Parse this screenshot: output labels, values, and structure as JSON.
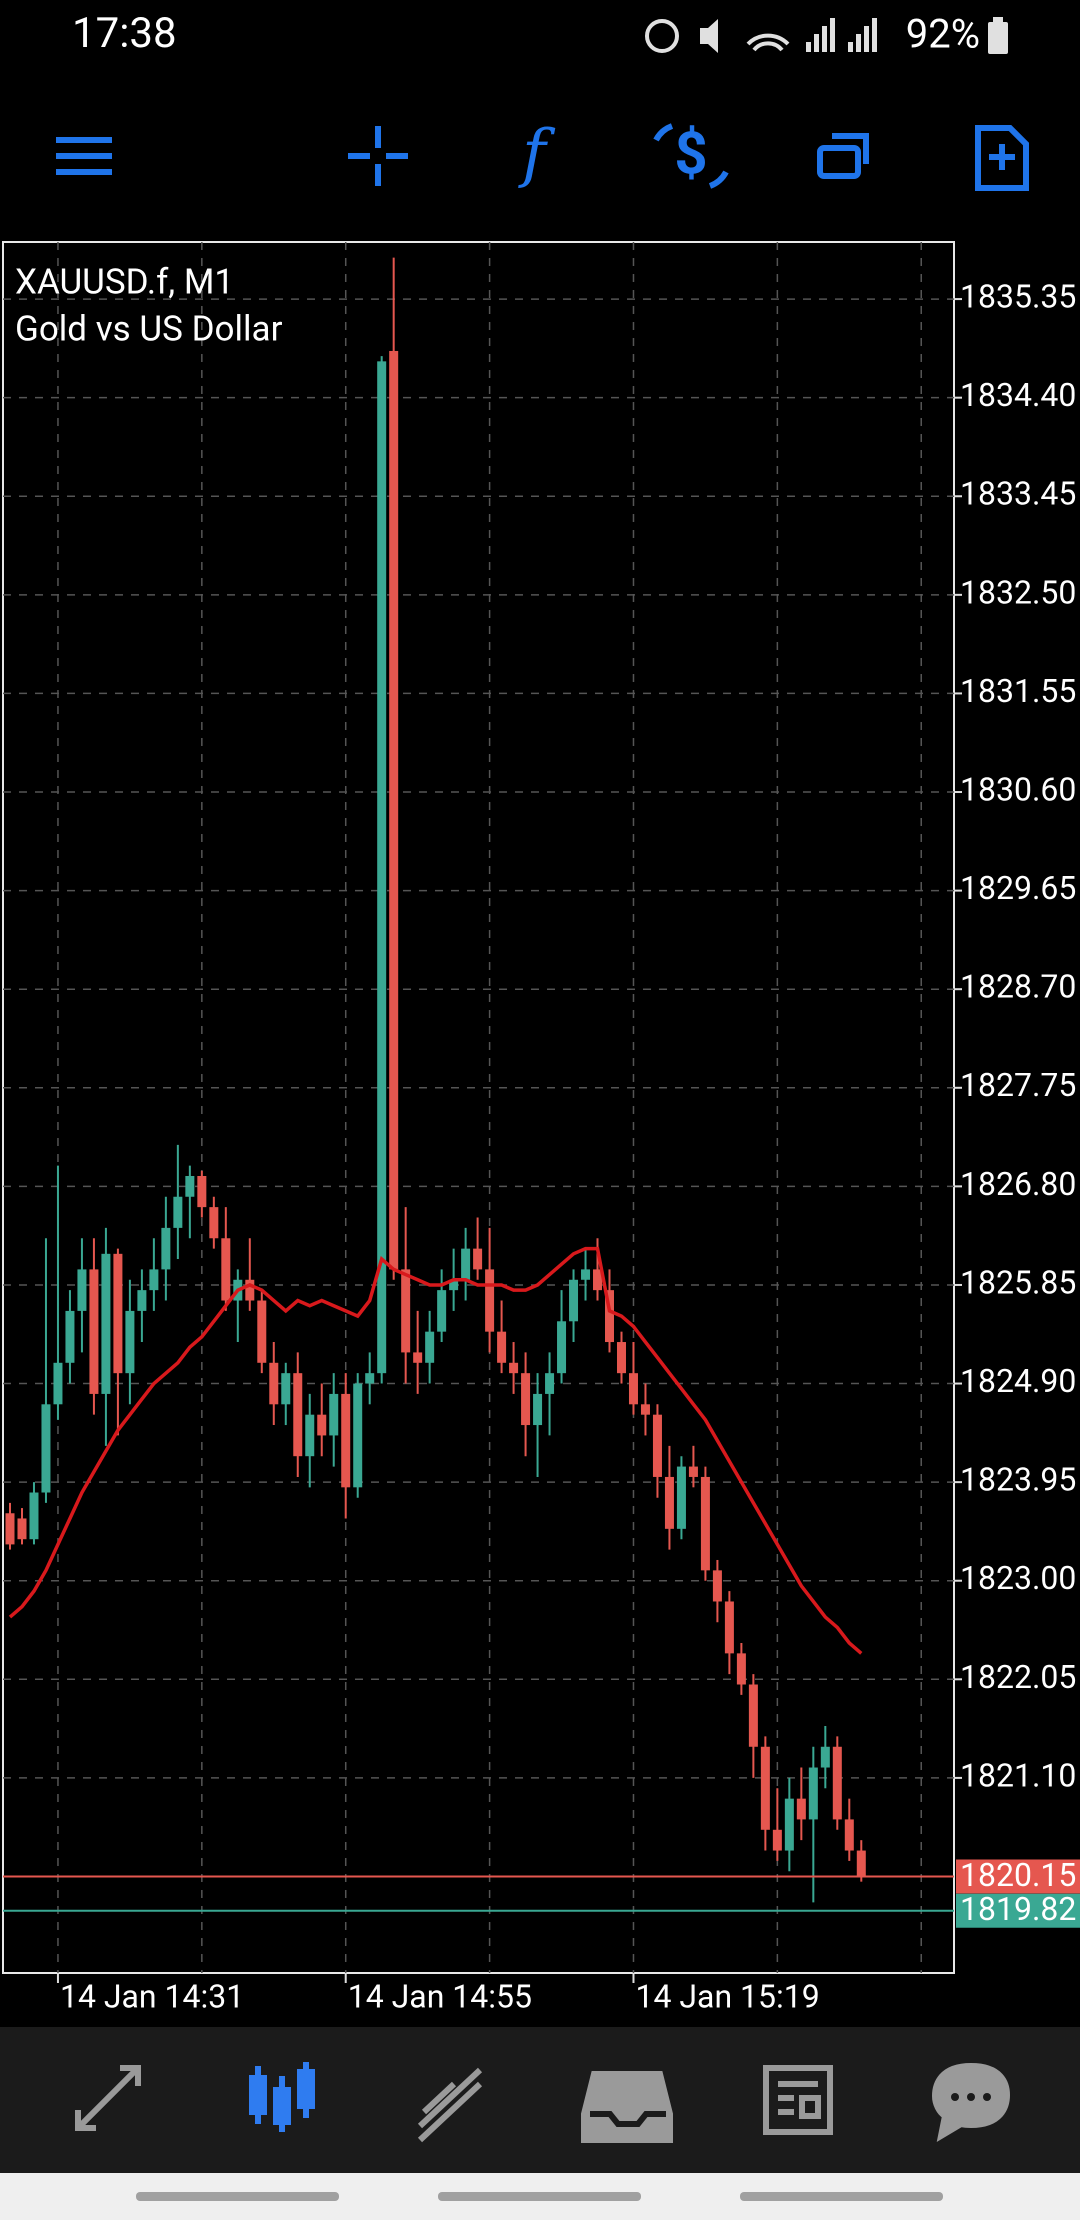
{
  "status_bar": {
    "time": "17:38",
    "battery": "92%"
  },
  "chart_data": {
    "type": "candlestick",
    "symbol": "XAUUSD.f, M1",
    "description": "Gold vs US Dollar",
    "categories": [
      null,
      null,
      null,
      null,
      "14 Jan 14:31",
      null,
      null,
      null,
      null,
      null,
      null,
      null,
      null,
      null,
      null,
      null,
      null,
      null,
      null,
      null,
      null,
      null,
      null,
      null,
      null,
      null,
      null,
      null,
      "14 Jan 14:55",
      null,
      null,
      null,
      null,
      null,
      null,
      null,
      null,
      null,
      null,
      null,
      null,
      null,
      null,
      null,
      null,
      null,
      null,
      null,
      null,
      null,
      null,
      null,
      "14 Jan 15:19",
      null,
      null,
      null,
      null,
      null,
      null,
      null,
      null,
      null,
      null,
      null,
      null,
      null,
      null,
      null,
      null,
      null,
      null,
      null
    ],
    "open": [
      1823.65,
      1823.6,
      1823.4,
      1823.85,
      1824.7,
      1825.1,
      1825.6,
      1826,
      1824.8,
      1826.15,
      1825,
      1825.6,
      1825.8,
      1826,
      1826.4,
      1826.7,
      1826.9,
      1826.6,
      1826.3,
      1825.7,
      1825.9,
      1825.7,
      1825.1,
      1824.7,
      1825,
      1824.2,
      1824.6,
      1824.4,
      1824.8,
      1823.9,
      1824.9,
      1825,
      1834.85,
      1826,
      1825.2,
      1825.1,
      1825.4,
      1825.8,
      1825.9,
      1826.2,
      1826,
      1825.4,
      1825.1,
      1825,
      1824.5,
      1824.8,
      1825,
      1825.5,
      1825.9,
      1826,
      1825.8,
      1825.3,
      1825,
      1824.7,
      1824.6,
      1824,
      1823.5,
      1824.1,
      1824,
      1823.1,
      1822.8,
      1822.3,
      1822,
      1821.4,
      1820.6,
      1820.4,
      1820.9,
      1820.7,
      1821.2,
      1821.4,
      1820.7,
      1820.4
    ],
    "high": [
      1823.75,
      1823.7,
      1823.95,
      1826.3,
      1827,
      1825.8,
      1826.3,
      1826.3,
      1826.4,
      1826.2,
      1825.9,
      1826,
      1826.3,
      1826.7,
      1827.2,
      1827,
      1826.95,
      1826.7,
      1826.6,
      1826,
      1826.3,
      1825.8,
      1825.3,
      1825.1,
      1825.2,
      1824.8,
      1824.9,
      1825,
      1825,
      1825,
      1825.2,
      1834.8,
      1835.75,
      1826.6,
      1825.6,
      1825.6,
      1826,
      1826.2,
      1826.4,
      1826.5,
      1826.4,
      1825.7,
      1825.3,
      1825.2,
      1825,
      1825.2,
      1825.8,
      1826,
      1826.2,
      1826.3,
      1826,
      1825.4,
      1825.3,
      1824.9,
      1824.7,
      1824.3,
      1824.2,
      1824.3,
      1824.1,
      1823.2,
      1822.9,
      1822.4,
      1822.1,
      1821.5,
      1821,
      1821.1,
      1821.2,
      1821.4,
      1821.6,
      1821.5,
      1820.9,
      1820.5
    ],
    "low": [
      1823.3,
      1823.35,
      1823.35,
      1823.75,
      1824.55,
      1824.9,
      1825.2,
      1824.6,
      1824.3,
      1824.4,
      1824.7,
      1825.3,
      1825.6,
      1825.7,
      1826.1,
      1826.3,
      1826.5,
      1826.2,
      1825.6,
      1825.3,
      1825.6,
      1825,
      1824.5,
      1824.5,
      1824,
      1823.9,
      1824.2,
      1824.1,
      1823.6,
      1823.8,
      1824.7,
      1824.9,
      1825.9,
      1824.9,
      1824.8,
      1824.9,
      1825.3,
      1825.6,
      1825.7,
      1825.9,
      1825.2,
      1825,
      1824.8,
      1824.2,
      1824,
      1824.4,
      1824.9,
      1825.3,
      1825.7,
      1825.7,
      1825.2,
      1824.9,
      1824.6,
      1824.4,
      1823.8,
      1823.3,
      1823.4,
      1823.9,
      1823,
      1822.6,
      1822.1,
      1821.9,
      1821.1,
      1820.4,
      1820.3,
      1820.2,
      1820.5,
      1819.9,
      1821,
      1820.6,
      1820.3,
      1820.1
    ],
    "close": [
      1823.35,
      1823.4,
      1823.85,
      1824.7,
      1825.1,
      1825.6,
      1826,
      1824.8,
      1826.15,
      1825,
      1825.6,
      1825.8,
      1826,
      1826.4,
      1826.7,
      1826.9,
      1826.6,
      1826.3,
      1825.7,
      1825.9,
      1825.7,
      1825.1,
      1824.7,
      1825,
      1824.2,
      1824.6,
      1824.4,
      1824.8,
      1823.9,
      1824.9,
      1825,
      1834.75,
      1826,
      1825.2,
      1825.1,
      1825.4,
      1825.8,
      1825.9,
      1826.2,
      1826,
      1825.4,
      1825.1,
      1825,
      1824.5,
      1824.8,
      1825,
      1825.5,
      1825.9,
      1826,
      1825.8,
      1825.3,
      1825,
      1824.7,
      1824.6,
      1824,
      1823.5,
      1824.1,
      1824,
      1823.1,
      1822.8,
      1822.3,
      1822,
      1821.4,
      1820.6,
      1820.4,
      1820.9,
      1820.7,
      1821.2,
      1821.4,
      1820.7,
      1820.4,
      1820.15
    ],
    "color_up": "#3aa893",
    "color_down": "#e5574f",
    "ma": {
      "color": "#d8191c",
      "values": [
        1822.65,
        1822.75,
        1822.9,
        1823.1,
        1823.35,
        1823.6,
        1823.85,
        1824.05,
        1824.25,
        1824.45,
        1824.6,
        1824.75,
        1824.9,
        1825,
        1825.1,
        1825.25,
        1825.35,
        1825.5,
        1825.65,
        1825.8,
        1825.85,
        1825.8,
        1825.7,
        1825.6,
        1825.7,
        1825.65,
        1825.7,
        1825.65,
        1825.6,
        1825.55,
        1825.7,
        1826.1,
        1826,
        1825.95,
        1825.9,
        1825.85,
        1825.85,
        1825.9,
        1825.9,
        1825.85,
        1825.85,
        1825.85,
        1825.8,
        1825.8,
        1825.85,
        1825.95,
        1826.05,
        1826.15,
        1826.2,
        1826.2,
        1825.6,
        1825.55,
        1825.45,
        1825.3,
        1825.15,
        1825,
        1824.85,
        1824.7,
        1824.55,
        1824.35,
        1824.15,
        1823.95,
        1823.75,
        1823.55,
        1823.35,
        1823.15,
        1822.95,
        1822.8,
        1822.65,
        1822.55,
        1822.4,
        1822.3
      ]
    },
    "bid": {
      "value": 1820.15,
      "color": "#e5574f"
    },
    "ask": {
      "value": 1819.82,
      "color": "#3aa893"
    },
    "ylim": [
      1819.22,
      1835.9
    ],
    "yticks": [
      1835.35,
      {
        "value": 1834.4,
        "label": "1834.40"
      },
      1833.45,
      {
        "value": 1832.5,
        "label": "1832.50"
      },
      1831.55,
      {
        "value": 1830.6,
        "label": "1830.60"
      },
      1829.65,
      {
        "value": 1828.7,
        "label": "1828.70"
      },
      1827.75,
      {
        "value": 1826.8,
        "label": "1826.80"
      },
      1825.85,
      {
        "value": 1824.9,
        "label": "1824.90"
      },
      1823.95,
      {
        "value": 1823,
        "label": "1823.00"
      },
      1822.05,
      {
        "value": 1821.1,
        "label": "1821.10"
      }
    ],
    "grid": true
  }
}
